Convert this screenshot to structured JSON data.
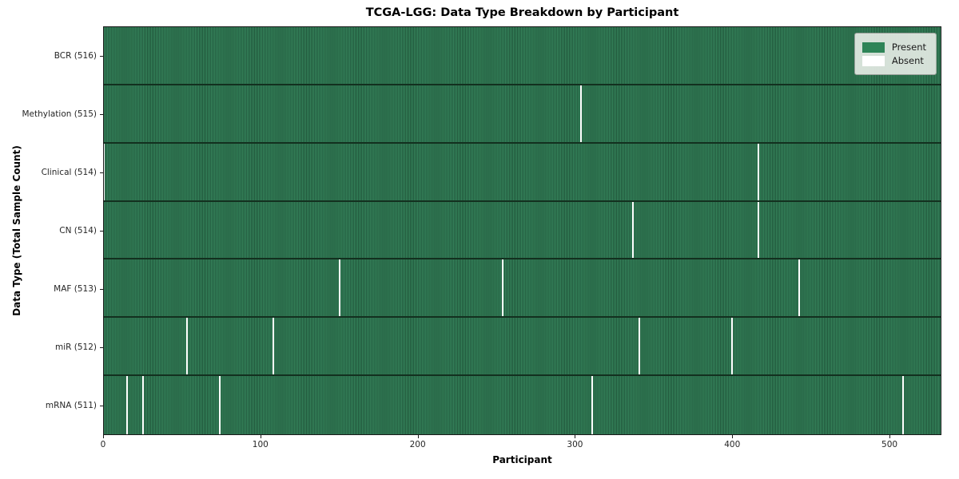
{
  "title": "TCGA-LGG: Data Type Breakdown by Participant",
  "chart_data": {
    "type": "heatmap",
    "title": "TCGA-LGG: Data Type Breakdown by Participant",
    "xlabel": "Participant",
    "ylabel": "Data Type (Total Sample Count)",
    "xlim": [
      0,
      533
    ],
    "x_ticks": [
      0,
      100,
      200,
      300,
      400,
      500
    ],
    "n_participants": 516,
    "grid": false,
    "legend_position": "upper right",
    "legend": [
      {
        "label": "Present",
        "color": "#2e8457"
      },
      {
        "label": "Absent",
        "color": "#ffffff"
      }
    ],
    "colors": {
      "present": "#2e8457",
      "present_edge": "#1d4f36",
      "absent": "#ffffff",
      "row_separator": "#13301f"
    },
    "rows": [
      {
        "data_type": "BCR",
        "label": "BCR (516)",
        "present_count": 516,
        "absent_at": []
      },
      {
        "data_type": "Methylation",
        "label": "Methylation (515)",
        "present_count": 515,
        "absent_at": [
          304
        ]
      },
      {
        "data_type": "Clinical",
        "label": "Clinical (514)",
        "present_count": 514,
        "absent_at": [
          0,
          417
        ]
      },
      {
        "data_type": "CN",
        "label": "CN (514)",
        "present_count": 514,
        "absent_at": [
          337,
          417
        ]
      },
      {
        "data_type": "MAF",
        "label": "MAF (513)",
        "present_count": 513,
        "absent_at": [
          150,
          254,
          443
        ]
      },
      {
        "data_type": "miR",
        "label": "miR (512)",
        "present_count": 512,
        "absent_at": [
          53,
          108,
          341,
          400
        ]
      },
      {
        "data_type": "mRNA",
        "label": "mRNA (511)",
        "present_count": 511,
        "absent_at": [
          15,
          25,
          74,
          311,
          509
        ]
      }
    ]
  }
}
